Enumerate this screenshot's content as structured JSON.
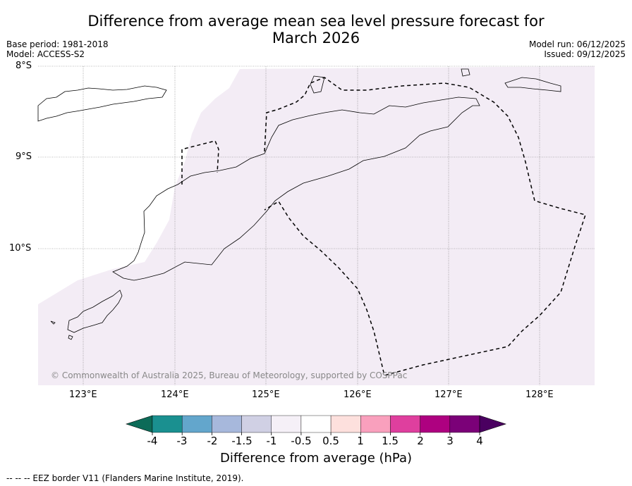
{
  "title_line1": "Difference from average mean sea level pressure forecast for",
  "title_line2": "March 2026",
  "meta": {
    "base_period": "Base period: 1981-2018",
    "model": "Model: ACCESS-S2",
    "model_run": "Model run: 06/12/2025",
    "issued": "Issued: 09/12/2025"
  },
  "map": {
    "lat_labels": [
      "8°S",
      "9°S",
      "10°S"
    ],
    "lon_labels": [
      "123°E",
      "124°E",
      "125°E",
      "126°E",
      "127°E",
      "128°E"
    ],
    "copyright": "© Commonwealth of Australia 2025, Bureau of Meteorology, supported by COSPPac",
    "shading_color": "#f3ecf5"
  },
  "colorbar": {
    "title": "Difference from average (hPa)",
    "tick_labels": [
      "-4",
      "-3",
      "-2",
      "-1.5",
      "-1",
      "-0.5",
      "0.5",
      "1",
      "1.5",
      "2",
      "3",
      "4"
    ],
    "colors": [
      "#1a9090",
      "#63a6cc",
      "#a7b8dc",
      "#d0d0e4",
      "#f5f0f7",
      "#ffffff",
      "#fde0dd",
      "#f9a0bd",
      "#df3f9e",
      "#ae0180",
      "#7b0178"
    ],
    "under_color": "#0c6b58",
    "over_color": "#4a0060"
  },
  "footer": "--  --  -- EEZ border V11 (Flanders Marine Institute, 2019)."
}
